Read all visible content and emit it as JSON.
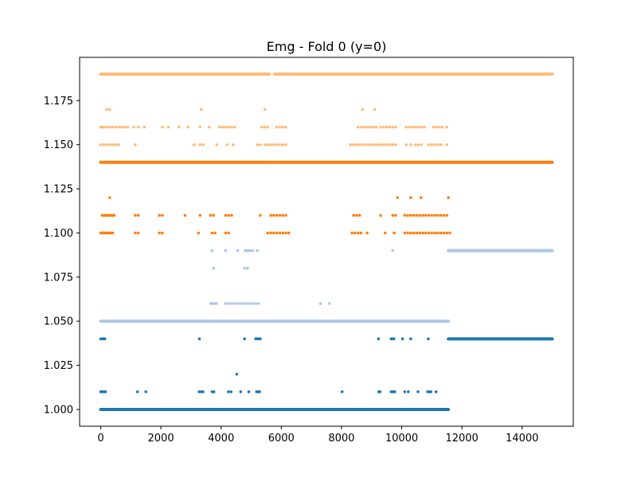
{
  "chart_data": {
    "type": "scatter",
    "title": "Emg - Fold 0 (y=0)",
    "xlabel": "",
    "ylabel": "",
    "xlim": [
      -700,
      15700
    ],
    "ylim": [
      0.9905,
      1.1995
    ],
    "x_ticks": [
      0,
      2000,
      4000,
      6000,
      8000,
      10000,
      12000,
      14000
    ],
    "x_tick_labels": [
      "0",
      "2000",
      "4000",
      "6000",
      "8000",
      "10000",
      "12000",
      "14000"
    ],
    "y_ticks": [
      1.0,
      1.025,
      1.05,
      1.075,
      1.1,
      1.125,
      1.15,
      1.175
    ],
    "y_tick_labels": [
      "1.000",
      "1.025",
      "1.050",
      "1.075",
      "1.100",
      "1.125",
      "1.150",
      "1.175"
    ],
    "grid": false,
    "legend": "none",
    "series": [
      {
        "color": "#1f77b4",
        "segments": [
          {
            "y": 1.0,
            "x0": 0,
            "x1": 11550
          },
          {
            "y": 1.04,
            "x0": 11550,
            "x1": 15000
          }
        ],
        "points": [
          [
            0,
            1.04
          ],
          [
            40,
            1.04
          ],
          [
            80,
            1.04
          ],
          [
            110,
            1.04
          ],
          [
            140,
            1.04
          ],
          [
            3280,
            1.04
          ],
          [
            4780,
            1.04
          ],
          [
            5150,
            1.04
          ],
          [
            5200,
            1.04
          ],
          [
            5250,
            1.04
          ],
          [
            5300,
            1.04
          ],
          [
            9230,
            1.04
          ],
          [
            9650,
            1.04
          ],
          [
            9700,
            1.04
          ],
          [
            9740,
            1.04
          ],
          [
            10030,
            1.04
          ],
          [
            10300,
            1.04
          ],
          [
            10880,
            1.04
          ],
          [
            4520,
            1.02
          ],
          [
            0,
            1.01
          ],
          [
            40,
            1.01
          ],
          [
            80,
            1.01
          ],
          [
            120,
            1.01
          ],
          [
            160,
            1.01
          ],
          [
            1220,
            1.01
          ],
          [
            1500,
            1.01
          ],
          [
            3270,
            1.01
          ],
          [
            3340,
            1.01
          ],
          [
            3400,
            1.01
          ],
          [
            3700,
            1.01
          ],
          [
            3760,
            1.01
          ],
          [
            4240,
            1.01
          ],
          [
            4330,
            1.01
          ],
          [
            4650,
            1.01
          ],
          [
            4920,
            1.01
          ],
          [
            5180,
            1.01
          ],
          [
            5230,
            1.01
          ],
          [
            5280,
            1.01
          ],
          [
            8020,
            1.01
          ],
          [
            9240,
            1.01
          ],
          [
            9280,
            1.01
          ],
          [
            9650,
            1.01
          ],
          [
            9690,
            1.01
          ],
          [
            9730,
            1.01
          ],
          [
            9770,
            1.01
          ],
          [
            10100,
            1.01
          ],
          [
            10220,
            1.01
          ],
          [
            10540,
            1.01
          ],
          [
            10860,
            1.01
          ],
          [
            10920,
            1.01
          ],
          [
            10970,
            1.01
          ],
          [
            11140,
            1.01
          ]
        ]
      },
      {
        "color": "#aec7e8",
        "segments": [
          {
            "y": 1.05,
            "x0": 0,
            "x1": 11550
          },
          {
            "y": 1.09,
            "x0": 11550,
            "x1": 15000
          }
        ],
        "points": [
          [
            3700,
            1.09
          ],
          [
            4150,
            1.09
          ],
          [
            4550,
            1.09
          ],
          [
            4800,
            1.09
          ],
          [
            4880,
            1.09
          ],
          [
            4960,
            1.09
          ],
          [
            5050,
            1.09
          ],
          [
            5200,
            1.09
          ],
          [
            9700,
            1.09
          ],
          [
            3750,
            1.08
          ],
          [
            4780,
            1.08
          ],
          [
            4880,
            1.08
          ],
          [
            3650,
            1.06
          ],
          [
            3700,
            1.06
          ],
          [
            3750,
            1.06
          ],
          [
            3800,
            1.06
          ],
          [
            3850,
            1.06
          ],
          [
            4150,
            1.06
          ],
          [
            4250,
            1.06
          ],
          [
            4350,
            1.06
          ],
          [
            4450,
            1.06
          ],
          [
            4550,
            1.06
          ],
          [
            4650,
            1.06
          ],
          [
            4750,
            1.06
          ],
          [
            4850,
            1.06
          ],
          [
            4950,
            1.06
          ],
          [
            5050,
            1.06
          ],
          [
            5150,
            1.06
          ],
          [
            5250,
            1.06
          ],
          [
            7300,
            1.06
          ],
          [
            7600,
            1.06
          ]
        ]
      },
      {
        "color": "#ff7f0e",
        "segments": [
          {
            "y": 1.14,
            "x0": 0,
            "x1": 5650
          },
          {
            "y": 1.14,
            "x0": 5720,
            "x1": 15000
          }
        ],
        "points": [
          [
            300,
            1.12
          ],
          [
            9860,
            1.12
          ],
          [
            10300,
            1.12
          ],
          [
            10640,
            1.12
          ],
          [
            11550,
            1.12
          ],
          [
            50,
            1.11
          ],
          [
            100,
            1.11
          ],
          [
            150,
            1.11
          ],
          [
            200,
            1.11
          ],
          [
            250,
            1.11
          ],
          [
            300,
            1.11
          ],
          [
            350,
            1.11
          ],
          [
            400,
            1.11
          ],
          [
            450,
            1.11
          ],
          [
            1150,
            1.11
          ],
          [
            1250,
            1.11
          ],
          [
            1950,
            1.11
          ],
          [
            2050,
            1.11
          ],
          [
            2800,
            1.11
          ],
          [
            3300,
            1.11
          ],
          [
            3650,
            1.11
          ],
          [
            3750,
            1.11
          ],
          [
            4150,
            1.11
          ],
          [
            4250,
            1.11
          ],
          [
            4350,
            1.11
          ],
          [
            5300,
            1.11
          ],
          [
            5650,
            1.11
          ],
          [
            5750,
            1.11
          ],
          [
            5850,
            1.11
          ],
          [
            5950,
            1.11
          ],
          [
            6050,
            1.11
          ],
          [
            6150,
            1.11
          ],
          [
            8400,
            1.11
          ],
          [
            8500,
            1.11
          ],
          [
            8600,
            1.11
          ],
          [
            9300,
            1.11
          ],
          [
            9700,
            1.11
          ],
          [
            9800,
            1.11
          ],
          [
            10100,
            1.11
          ],
          [
            10200,
            1.11
          ],
          [
            10300,
            1.11
          ],
          [
            10400,
            1.11
          ],
          [
            10500,
            1.11
          ],
          [
            10600,
            1.11
          ],
          [
            10700,
            1.11
          ],
          [
            10800,
            1.11
          ],
          [
            10900,
            1.11
          ],
          [
            11000,
            1.11
          ],
          [
            11100,
            1.11
          ],
          [
            11200,
            1.11
          ],
          [
            11300,
            1.11
          ],
          [
            11400,
            1.11
          ],
          [
            11500,
            1.11
          ],
          [
            0,
            1.1
          ],
          [
            50,
            1.1
          ],
          [
            100,
            1.1
          ],
          [
            150,
            1.1
          ],
          [
            200,
            1.1
          ],
          [
            250,
            1.1
          ],
          [
            300,
            1.1
          ],
          [
            350,
            1.1
          ],
          [
            400,
            1.1
          ],
          [
            1150,
            1.1
          ],
          [
            1250,
            1.1
          ],
          [
            1950,
            1.1
          ],
          [
            2050,
            1.1
          ],
          [
            3250,
            1.1
          ],
          [
            3700,
            1.1
          ],
          [
            3800,
            1.1
          ],
          [
            4150,
            1.1
          ],
          [
            4250,
            1.1
          ],
          [
            5550,
            1.1
          ],
          [
            5650,
            1.1
          ],
          [
            5750,
            1.1
          ],
          [
            5850,
            1.1
          ],
          [
            5950,
            1.1
          ],
          [
            6050,
            1.1
          ],
          [
            6150,
            1.1
          ],
          [
            6250,
            1.1
          ],
          [
            8350,
            1.1
          ],
          [
            8450,
            1.1
          ],
          [
            8550,
            1.1
          ],
          [
            8650,
            1.1
          ],
          [
            8850,
            1.1
          ],
          [
            9450,
            1.1
          ],
          [
            9750,
            1.1
          ],
          [
            10100,
            1.1
          ],
          [
            10200,
            1.1
          ],
          [
            10300,
            1.1
          ],
          [
            10400,
            1.1
          ],
          [
            10500,
            1.1
          ],
          [
            10600,
            1.1
          ],
          [
            10700,
            1.1
          ],
          [
            10800,
            1.1
          ],
          [
            10900,
            1.1
          ],
          [
            11000,
            1.1
          ],
          [
            11100,
            1.1
          ],
          [
            11200,
            1.1
          ],
          [
            11300,
            1.1
          ],
          [
            11400,
            1.1
          ],
          [
            11500,
            1.1
          ],
          [
            11600,
            1.1
          ]
        ]
      },
      {
        "color": "#ffbb78",
        "segments": [
          {
            "y": 1.19,
            "x0": 0,
            "x1": 5600
          },
          {
            "y": 1.19,
            "x0": 5780,
            "x1": 15000
          }
        ],
        "points": [
          [
            200,
            1.17
          ],
          [
            300,
            1.17
          ],
          [
            3340,
            1.17
          ],
          [
            5450,
            1.17
          ],
          [
            8700,
            1.17
          ],
          [
            9100,
            1.17
          ],
          [
            0,
            1.16
          ],
          [
            50,
            1.16
          ],
          [
            100,
            1.16
          ],
          [
            200,
            1.16
          ],
          [
            300,
            1.16
          ],
          [
            400,
            1.16
          ],
          [
            500,
            1.16
          ],
          [
            600,
            1.16
          ],
          [
            700,
            1.16
          ],
          [
            800,
            1.16
          ],
          [
            900,
            1.16
          ],
          [
            1100,
            1.16
          ],
          [
            1250,
            1.16
          ],
          [
            1450,
            1.16
          ],
          [
            2050,
            1.16
          ],
          [
            2250,
            1.16
          ],
          [
            2600,
            1.16
          ],
          [
            2900,
            1.16
          ],
          [
            3300,
            1.16
          ],
          [
            3600,
            1.16
          ],
          [
            3950,
            1.16
          ],
          [
            4050,
            1.16
          ],
          [
            4150,
            1.16
          ],
          [
            4250,
            1.16
          ],
          [
            4350,
            1.16
          ],
          [
            4450,
            1.16
          ],
          [
            5350,
            1.16
          ],
          [
            5450,
            1.16
          ],
          [
            5550,
            1.16
          ],
          [
            5850,
            1.16
          ],
          [
            5950,
            1.16
          ],
          [
            6050,
            1.16
          ],
          [
            6150,
            1.16
          ],
          [
            8550,
            1.16
          ],
          [
            8650,
            1.16
          ],
          [
            8750,
            1.16
          ],
          [
            8850,
            1.16
          ],
          [
            8950,
            1.16
          ],
          [
            9050,
            1.16
          ],
          [
            9150,
            1.16
          ],
          [
            9300,
            1.16
          ],
          [
            9400,
            1.16
          ],
          [
            9500,
            1.16
          ],
          [
            9600,
            1.16
          ],
          [
            9700,
            1.16
          ],
          [
            9800,
            1.16
          ],
          [
            10150,
            1.16
          ],
          [
            10250,
            1.16
          ],
          [
            10350,
            1.16
          ],
          [
            10450,
            1.16
          ],
          [
            10550,
            1.16
          ],
          [
            10650,
            1.16
          ],
          [
            10750,
            1.16
          ],
          [
            11050,
            1.16
          ],
          [
            11150,
            1.16
          ],
          [
            11250,
            1.16
          ],
          [
            11350,
            1.16
          ],
          [
            11500,
            1.16
          ],
          [
            0,
            1.15
          ],
          [
            100,
            1.15
          ],
          [
            200,
            1.15
          ],
          [
            300,
            1.15
          ],
          [
            400,
            1.15
          ],
          [
            500,
            1.15
          ],
          [
            600,
            1.15
          ],
          [
            1150,
            1.15
          ],
          [
            3100,
            1.15
          ],
          [
            3300,
            1.15
          ],
          [
            3400,
            1.15
          ],
          [
            3850,
            1.15
          ],
          [
            4200,
            1.15
          ],
          [
            4400,
            1.15
          ],
          [
            5200,
            1.15
          ],
          [
            5300,
            1.15
          ],
          [
            5450,
            1.15
          ],
          [
            5550,
            1.15
          ],
          [
            5650,
            1.15
          ],
          [
            5750,
            1.15
          ],
          [
            5850,
            1.15
          ],
          [
            5950,
            1.15
          ],
          [
            6050,
            1.15
          ],
          [
            6150,
            1.15
          ],
          [
            8300,
            1.15
          ],
          [
            8400,
            1.15
          ],
          [
            8500,
            1.15
          ],
          [
            8600,
            1.15
          ],
          [
            8700,
            1.15
          ],
          [
            8800,
            1.15
          ],
          [
            8900,
            1.15
          ],
          [
            9000,
            1.15
          ],
          [
            9100,
            1.15
          ],
          [
            9200,
            1.15
          ],
          [
            9300,
            1.15
          ],
          [
            9400,
            1.15
          ],
          [
            9500,
            1.15
          ],
          [
            9600,
            1.15
          ],
          [
            9700,
            1.15
          ],
          [
            9800,
            1.15
          ],
          [
            10150,
            1.15
          ],
          [
            10300,
            1.15
          ],
          [
            10450,
            1.15
          ],
          [
            10550,
            1.15
          ],
          [
            10650,
            1.15
          ],
          [
            10900,
            1.15
          ],
          [
            11000,
            1.15
          ],
          [
            11100,
            1.15
          ],
          [
            11200,
            1.15
          ],
          [
            11300,
            1.15
          ],
          [
            11500,
            1.15
          ]
        ]
      }
    ]
  }
}
